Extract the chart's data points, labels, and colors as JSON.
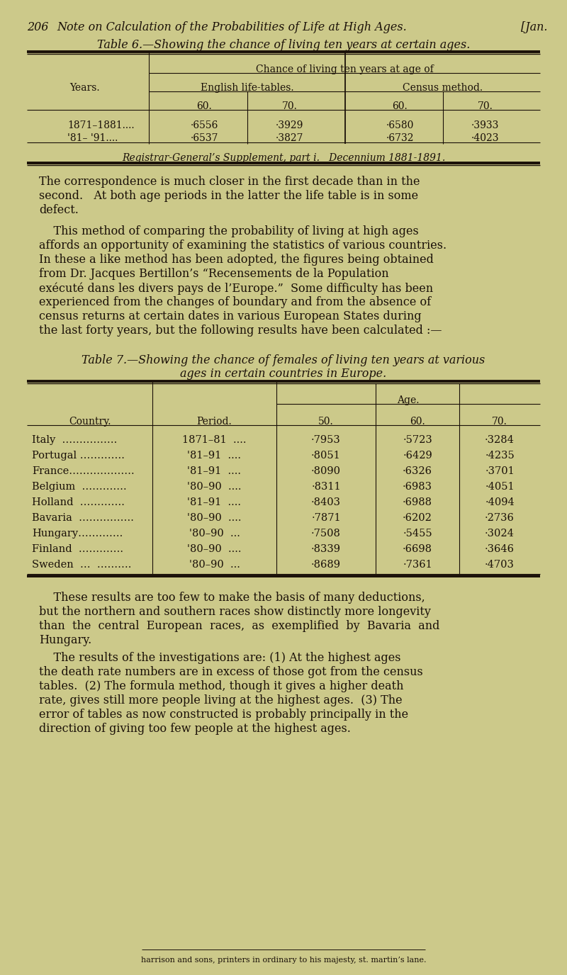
{
  "bg_color": "#ccc98a",
  "text_color": "#1a1008",
  "page_header_num": "206",
  "page_header_text": "Note on Calculation of the Probabilities of Life at High Ages.",
  "page_header_bracket": "[Jan.",
  "table6_title": "Table 6.—Showing the chance of living ten years at certain ages.",
  "table6_col_header_top": "Chance of living ten years at age of",
  "table6_col1_header": "Years.",
  "table6_group1_header": "English life-tables.",
  "table6_group2_header": "Census method.",
  "table6_sub_headers": [
    "60.",
    "70.",
    "60.",
    "70."
  ],
  "table6_rows": [
    [
      "1871–1881....",
      "·6556",
      "·3929",
      "·6580",
      "·3933"
    ],
    [
      "'81– '91....",
      "·6537",
      "·3827",
      "·6732",
      "·4023"
    ]
  ],
  "table6_footnote": "Registrar-General’s Supplement, part i.   Decennium 1881-1891.",
  "para1_lines": [
    "The correspondence is much closer in the first decade than in the",
    "second.   At both age periods in the latter the life table is in some",
    "defect."
  ],
  "para2_lines": [
    "    This method of comparing the probability of living at high ages",
    "affords an opportunity of examining the statistics of various countries.",
    "In these a like method has been adopted, the figures being obtained",
    "from Dr. Jacques Bertillon’s “Recensements de la Population",
    "exécuté dans les divers pays de l’Europe.”  Some difficulty has been",
    "experienced from the changes of boundary and from the absence of",
    "census returns at certain dates in various European States during",
    "the last forty years, but the following results have been calculated :—"
  ],
  "table7_title1": "Table 7.—Showing the chance of females of living ten years at various",
  "table7_title2": "ages in certain countries in Europe.",
  "table7_col1_header": "Country.",
  "table7_col2_header": "Period.",
  "table7_age_header": "Age.",
  "table7_sub_headers": [
    "50.",
    "60.",
    "70."
  ],
  "table7_rows": [
    [
      "Italy  …………….",
      "1871–81  ....",
      "·7953",
      "·5723",
      "·3284"
    ],
    [
      "Portugal ………….",
      "'81–91  ....",
      "·8051",
      "·6429",
      "·4235"
    ],
    [
      "France……………….",
      "'81–91  ....",
      "·8090",
      "·6326",
      "·3701"
    ],
    [
      "Belgium  ………….",
      "'80–90  ....",
      "·8311",
      "·6983",
      "·4051"
    ],
    [
      "Holland  ………….",
      "'81–91  ....",
      "·8403",
      "·6988",
      "·4094"
    ],
    [
      "Bavaria  …………….",
      "'80–90  ....",
      "·7871",
      "·6202",
      "·2736"
    ],
    [
      "Hungary………….",
      "'80–90  ...",
      "·7508",
      "·5455",
      "·3024"
    ],
    [
      "Finland  ………….",
      "'80–90  ....",
      "·8339",
      "·6698",
      "·3646"
    ],
    [
      "Sweden  …  ……….",
      "'80–90  ...",
      "·8689",
      "·7361",
      "·4703"
    ]
  ],
  "para3_lines": [
    "    These results are too few to make the basis of many deductions,",
    "but the northern and southern races show distinctly more longevity",
    "than  the  central  European  races,  as  exemplified  by  Bavaria  and",
    "Hungary."
  ],
  "para4_lines": [
    "    The results of the investigations are: (1) At the highest ages",
    "the death rate numbers are in excess of those got from the census",
    "tables.  (2) The formula method, though it gives a higher death",
    "rate, gives still more people living at the highest ages.  (3) The",
    "error of tables as now constructed is probably principally in the",
    "direction of giving too few people at the highest ages."
  ],
  "footer": "harrison and sons, printers in ordinary to his majesty, st. martin’s lane."
}
